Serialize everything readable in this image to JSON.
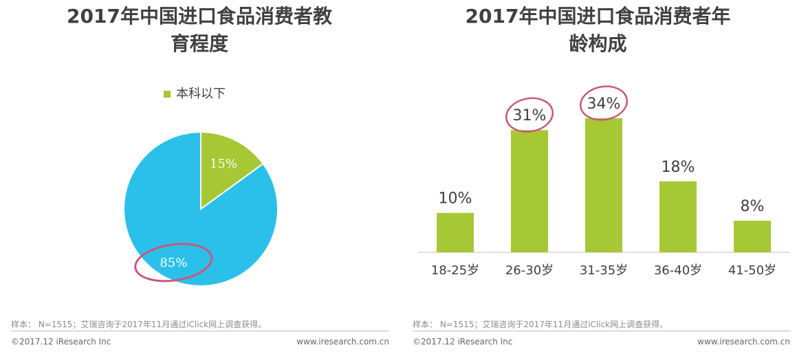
{
  "chart_data": [
    {
      "type": "pie",
      "title_lines": [
        "2017年中国进口食品消费者教",
        "育程度"
      ],
      "legend": [
        "本科以下"
      ],
      "slices": [
        {
          "label": "本科以下",
          "value": 15,
          "display": "15%",
          "color": "#a6c834"
        },
        {
          "label": "",
          "value": 85,
          "display": "85%",
          "color": "#2bc0ea"
        }
      ],
      "source_note": "样本： N=1515；艾瑞咨询于2017年11月通过iClick网上调查获得。",
      "copyright": "©2017.12 iResearch Inc",
      "website": "www.iresearch.com.cn"
    },
    {
      "type": "bar",
      "title_lines": [
        "2017年中国进口食品消费者年",
        "龄构成"
      ],
      "categories": [
        "18-25岁",
        "26-30岁",
        "31-35岁",
        "36-40岁",
        "41-50岁"
      ],
      "values": [
        10,
        31,
        34,
        18,
        8
      ],
      "labels": [
        "10%",
        "31%",
        "34%",
        "18%",
        "8%"
      ],
      "bar_color": "#a6c834",
      "highlighted": [
        "26-30岁",
        "31-35岁"
      ],
      "highlight_color": "#c9587a",
      "ylim": [
        0,
        34
      ],
      "source_note": "样本： N=1515；艾瑞咨询于2017年11月通过iClick网上调查获得。",
      "copyright": "©2017.12 iResearch Inc",
      "website": "www.iresearch.com.cn"
    }
  ]
}
